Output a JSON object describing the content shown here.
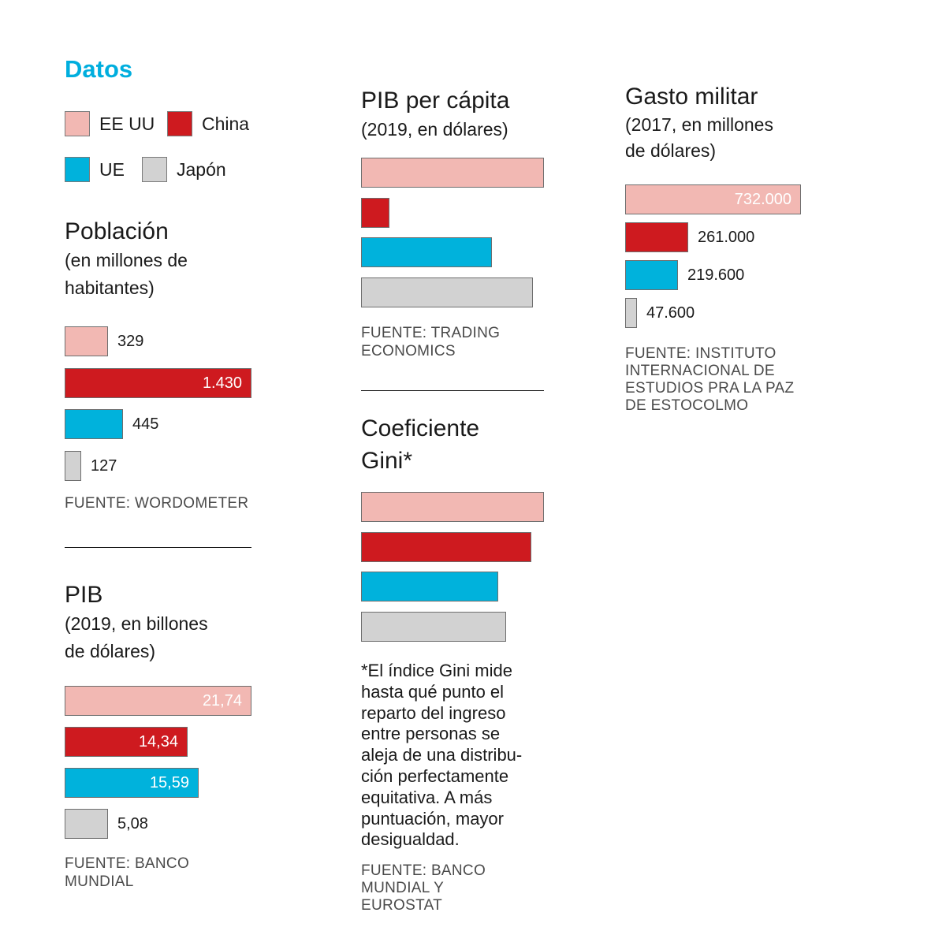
{
  "heading": "Datos",
  "colors": {
    "EE UU": "#f2b8b3",
    "China": "#ce1a1f",
    "UE": "#00b2dc",
    "Japón": "#d2d2d2",
    "heading": "#00aede"
  },
  "legend": [
    {
      "label": "EE UU",
      "color": "#f2b8b3"
    },
    {
      "label": "China",
      "color": "#ce1a1f"
    },
    {
      "label": "UE",
      "color": "#00b2dc"
    },
    {
      "label": "Japón",
      "color": "#d2d2d2"
    }
  ],
  "poblacion": {
    "title": "Población",
    "subtitle_1": "(en millones de",
    "subtitle_2": "habitantes)",
    "source": "FUENTE: WORDOMETER"
  },
  "pib": {
    "title": "PIB",
    "subtitle_1": "(2019, en billones",
    "subtitle_2": "de dólares)",
    "source_1": "FUENTE: BANCO",
    "source_2": "MUNDIAL"
  },
  "pib_pc": {
    "title": "PIB per cápita",
    "subtitle_1": "(2019, en dólares)",
    "source_1": "FUENTE: TRADING",
    "source_2": "ECONOMICS"
  },
  "gini": {
    "title_1": "Coeficiente",
    "title_2": "Gini*",
    "note": [
      "*El índice Gini mide",
      "hasta qué punto el",
      "reparto del ingreso",
      "entre personas se",
      "aleja de una distribu-",
      "ción perfectamente",
      "equitativa. A más",
      "puntuación, mayor",
      "desigualdad."
    ],
    "source_1": "FUENTE: BANCO",
    "source_2": "MUNDIAL Y",
    "source_3": "EUROSTAT"
  },
  "gasto": {
    "title": "Gasto militar",
    "subtitle_1": "(2017, en millones",
    "subtitle_2": "de dólares)",
    "source_1": "FUENTE: INSTITUTO",
    "source_2": "INTERNACIONAL DE",
    "source_3": "ESTUDIOS PRA LA PAZ",
    "source_4": "DE ESTOCOLMO"
  },
  "chart_data": [
    {
      "id": "poblacion",
      "type": "bar",
      "orientation": "horizontal",
      "title": "Población",
      "subtitle": "(en millones de habitantes)",
      "categories": [
        "EE UU",
        "China",
        "UE",
        "Japón"
      ],
      "values": [
        329,
        1430,
        445,
        127
      ],
      "labels": [
        "329",
        "1.430",
        "445",
        "127"
      ],
      "label_inside": [
        false,
        true,
        false,
        false
      ],
      "xlim": [
        0,
        1430
      ],
      "grid": false
    },
    {
      "id": "pib",
      "type": "bar",
      "orientation": "horizontal",
      "title": "PIB",
      "subtitle": "(2019, en billones de dólares)",
      "categories": [
        "EE UU",
        "China",
        "UE",
        "Japón"
      ],
      "values": [
        21.74,
        14.34,
        15.59,
        5.08
      ],
      "labels": [
        "21,74",
        "14,34",
        "15,59",
        "5,08"
      ],
      "label_inside": [
        true,
        true,
        true,
        false
      ],
      "xlim": [
        0,
        21.74
      ],
      "grid": false
    },
    {
      "id": "pib_pc",
      "type": "bar",
      "orientation": "horizontal",
      "title": "PIB per cápita",
      "subtitle": "(2019, en dólares)",
      "categories": [
        "EE UU",
        "China",
        "UE",
        "Japón"
      ],
      "values": [
        65000,
        10200,
        46500,
        61000
      ],
      "labels": [
        "",
        "",
        "",
        ""
      ],
      "label_inside": [
        false,
        false,
        false,
        false
      ],
      "xlim": [
        0,
        65000
      ],
      "grid": false
    },
    {
      "id": "gini",
      "type": "bar",
      "orientation": "horizontal",
      "title": "Coeficiente Gini*",
      "categories": [
        "EE UU",
        "China",
        "UE",
        "Japón"
      ],
      "values": [
        41.4,
        38.5,
        31.0,
        32.9
      ],
      "labels": [
        "",
        "",
        "",
        ""
      ],
      "label_inside": [
        false,
        false,
        false,
        false
      ],
      "xlim": [
        0,
        41.4
      ],
      "grid": false
    },
    {
      "id": "gasto",
      "type": "bar",
      "orientation": "horizontal",
      "title": "Gasto militar",
      "subtitle": "(2017, en millones de dólares)",
      "categories": [
        "EE UU",
        "China",
        "UE",
        "Japón"
      ],
      "values": [
        732000,
        261000,
        219600,
        47600
      ],
      "labels": [
        "732.000",
        "261.000",
        "219.600",
        "47.600"
      ],
      "label_inside": [
        true,
        false,
        false,
        false
      ],
      "xlim": [
        0,
        732000
      ],
      "grid": false
    }
  ]
}
